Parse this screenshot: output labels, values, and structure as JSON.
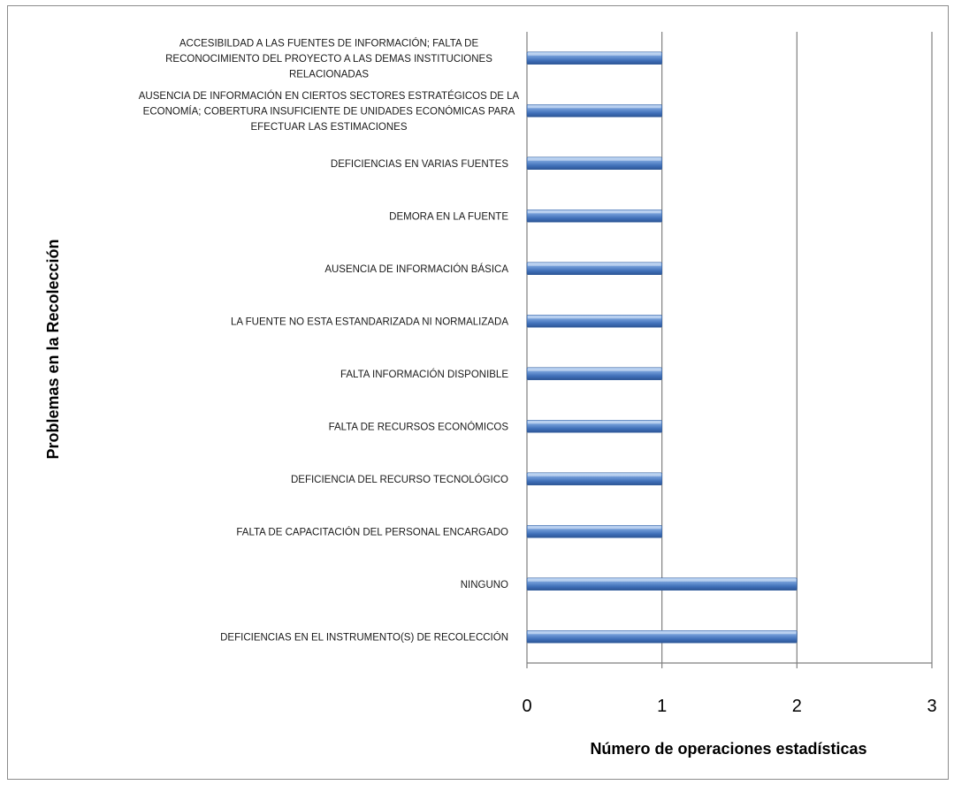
{
  "chart_data": {
    "type": "bar",
    "orientation": "horizontal",
    "xlabel": "Número de operaciones  estadísticas",
    "ylabel": "Problemas en la Recolección",
    "xlim": [
      0,
      3
    ],
    "xticks": [
      "0",
      "1",
      "2",
      "3"
    ],
    "grid": "vertical",
    "legend": "none",
    "bar_color": "#4f81bd",
    "categories": [
      [
        "ACCESIBILDAD A LAS FUENTES DE INFORMACIÓN; FALTA DE",
        "RECONOCIMIENTO DEL PROYECTO  A LAS DEMAS INSTITUCIONES",
        "RELACIONADAS"
      ],
      [
        "AUSENCIA DE INFORMACIÓN EN CIERTOS SECTORES ESTRATÉGICOS DE LA",
        "ECONOMÍA; COBERTURA INSUFICIENTE DE UNIDADES ECONÓMICAS PARA",
        "EFECTUAR LAS ESTIMACIONES"
      ],
      [
        "DEFICIENCIAS EN VARIAS FUENTES"
      ],
      [
        "DEMORA EN LA FUENTE"
      ],
      [
        "AUSENCIA DE INFORMACIÓN BÁSICA"
      ],
      [
        "LA FUENTE NO ESTA ESTANDARIZADA NI NORMALIZADA"
      ],
      [
        "FALTA INFORMACIÓN DISPONIBLE"
      ],
      [
        "FALTA DE RECURSOS ECONÓMICOS"
      ],
      [
        "DEFICIENCIA DEL RECURSO TECNOLÓGICO"
      ],
      [
        "FALTA DE CAPACITACIÓN DEL PERSONAL ENCARGADO"
      ],
      [
        "NINGUNO"
      ],
      [
        "DEFICIENCIAS EN EL INSTRUMENTO(S) DE RECOLECCIÓN"
      ]
    ],
    "values": [
      1,
      1,
      1,
      1,
      1,
      1,
      1,
      1,
      1,
      1,
      2,
      2
    ]
  }
}
